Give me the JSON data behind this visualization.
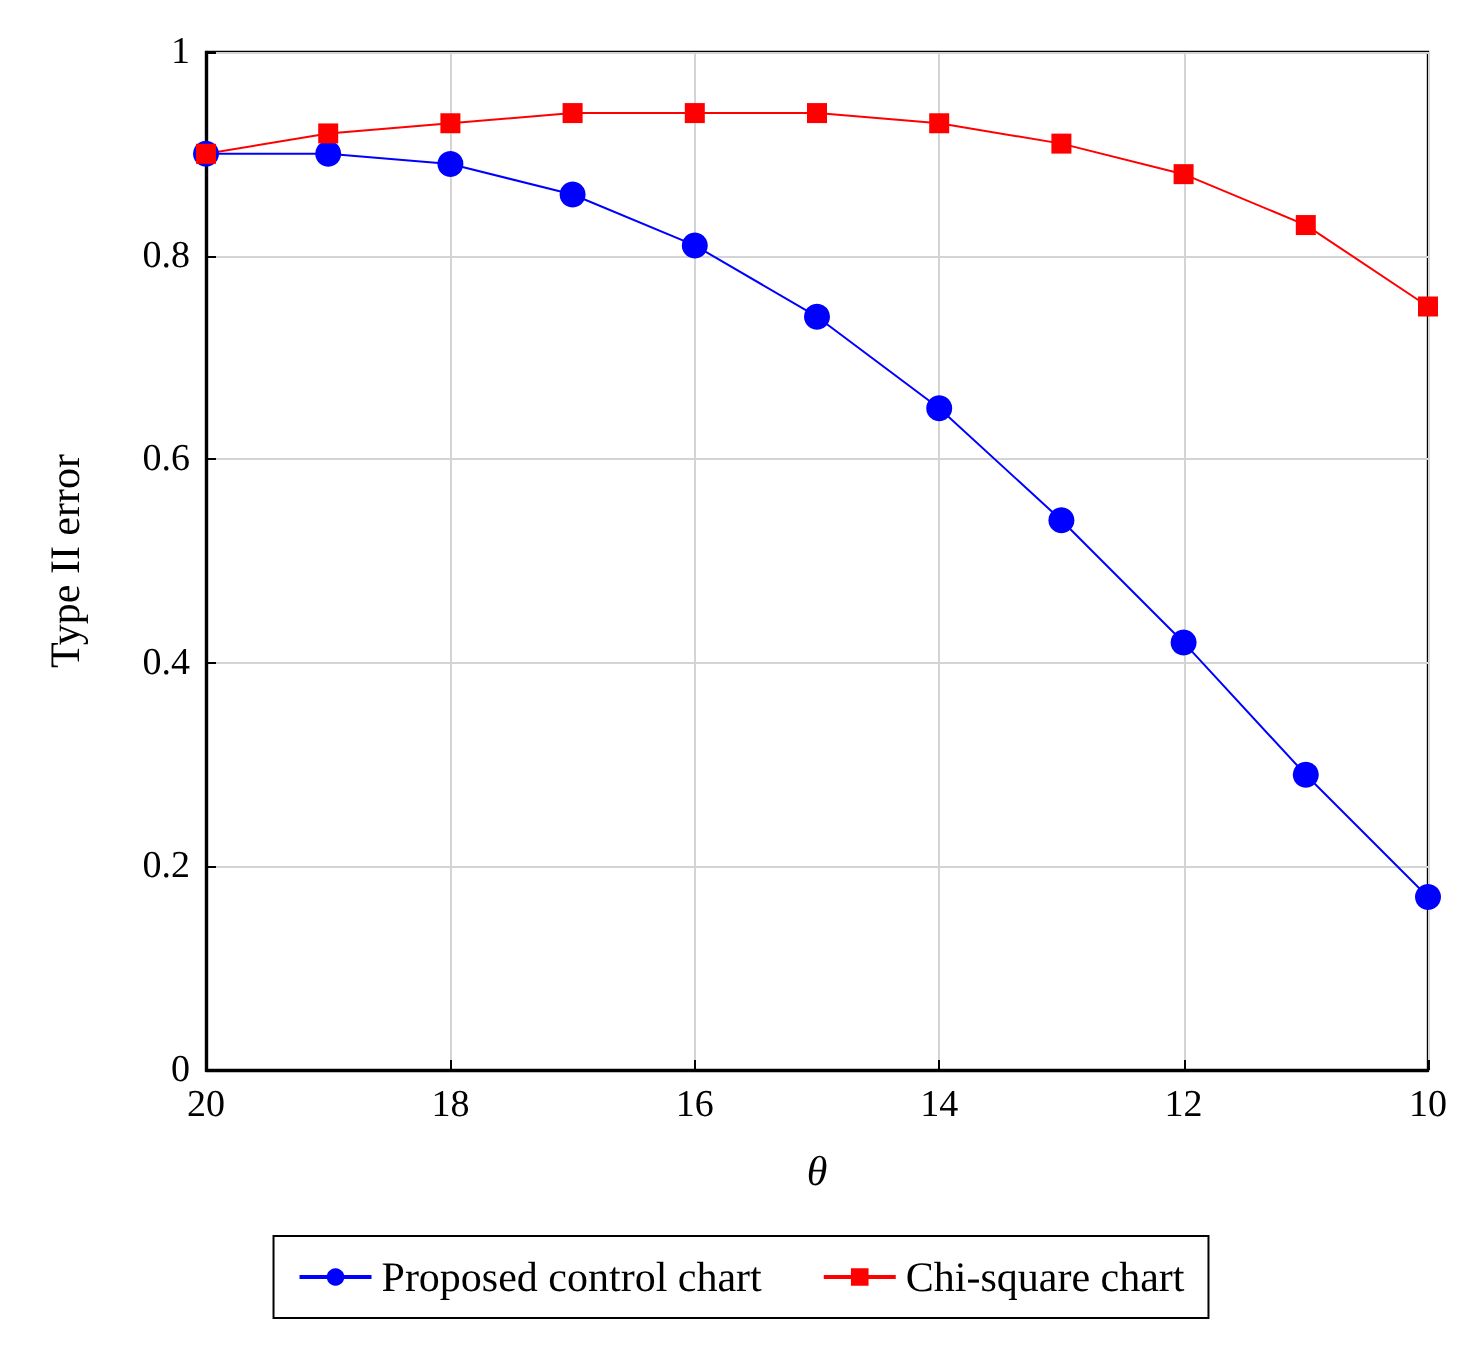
{
  "chart_data": {
    "type": "line",
    "xlabel": "θ",
    "ylabel": "Type II error",
    "x": [
      20,
      19,
      18,
      17,
      16,
      15,
      14,
      13,
      12,
      11,
      10
    ],
    "series": [
      {
        "name": "Proposed control chart",
        "color": "#0000ff",
        "marker": "circle",
        "values": [
          0.9,
          0.9,
          0.89,
          0.86,
          0.81,
          0.74,
          0.65,
          0.54,
          0.42,
          0.29,
          0.17
        ]
      },
      {
        "name": "Chi-square chart",
        "color": "#ff0000",
        "marker": "square",
        "values": [
          0.9,
          0.92,
          0.93,
          0.94,
          0.94,
          0.94,
          0.93,
          0.91,
          0.88,
          0.83,
          0.75
        ]
      }
    ],
    "xlim": [
      20,
      10
    ],
    "xticks": [
      20,
      18,
      16,
      14,
      12,
      10
    ],
    "ylim": [
      0,
      1
    ],
    "yticks": [
      0,
      0.2,
      0.4,
      0.6,
      0.8,
      1
    ],
    "grid": true,
    "legend": "bottom",
    "line_style": "solid"
  }
}
